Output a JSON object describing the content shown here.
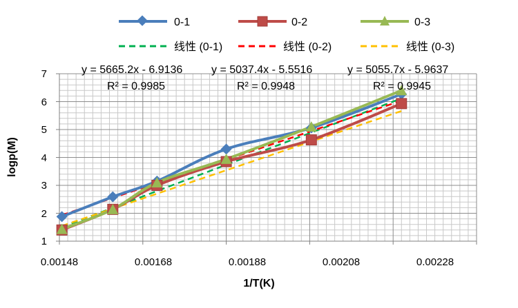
{
  "chart_data": {
    "type": "line",
    "xlabel": "1/T(K)",
    "ylabel": "logp(M)",
    "xlim": [
      0.00148,
      0.00248
    ],
    "ylim": [
      1,
      7
    ],
    "x_ticks": [
      "0.00148",
      "0.00168",
      "0.00188",
      "0.00208",
      "0.00228"
    ],
    "y_ticks": [
      "1",
      "2",
      "3",
      "4",
      "5",
      "6",
      "7"
    ],
    "grid": true,
    "legend_position": "top",
    "series": [
      {
        "name": "0-1",
        "color": "#4a7ebb",
        "marker": "diamond",
        "x": [
          0.001486,
          0.001608,
          0.001714,
          0.00188,
          0.002084,
          0.0023
        ],
        "y": [
          1.88,
          2.59,
          3.15,
          4.3,
          5.06,
          6.27
        ]
      },
      {
        "name": "0-2",
        "color": "#be4b48",
        "marker": "square",
        "x": [
          0.001486,
          0.001608,
          0.001714,
          0.00188,
          0.002084,
          0.0023
        ],
        "y": [
          1.4,
          2.14,
          3.0,
          3.85,
          4.63,
          5.93
        ]
      },
      {
        "name": "0-3",
        "color": "#98b954",
        "marker": "triangle",
        "x": [
          0.001486,
          0.001608,
          0.001714,
          0.00188,
          0.002084,
          0.0023
        ],
        "y": [
          1.43,
          2.14,
          3.1,
          3.94,
          5.1,
          6.4
        ]
      }
    ],
    "trendlines": [
      {
        "name": "线性 (0-1)",
        "color": "#00b050",
        "slope": 5665.2,
        "intercept": -6.9136,
        "equation": "y = 5665.2x - 6.9136",
        "r2": "R² = 0.9985",
        "label_position": "top-left"
      },
      {
        "name": "线性 (0-2)",
        "color": "#ff0000",
        "slope": 5037.4,
        "intercept": -5.5516,
        "equation": "y = 5037.4x - 5.5516",
        "r2": "R² = 0.9948",
        "label_position": "top-center"
      },
      {
        "name": "线性 (0-3)",
        "color": "#ffc000",
        "slope": 5055.7,
        "intercept": -5.9637,
        "equation": "y = 5055.7x - 5.9637",
        "r2": "R² = 0.9945",
        "label_position": "top-right"
      }
    ]
  }
}
